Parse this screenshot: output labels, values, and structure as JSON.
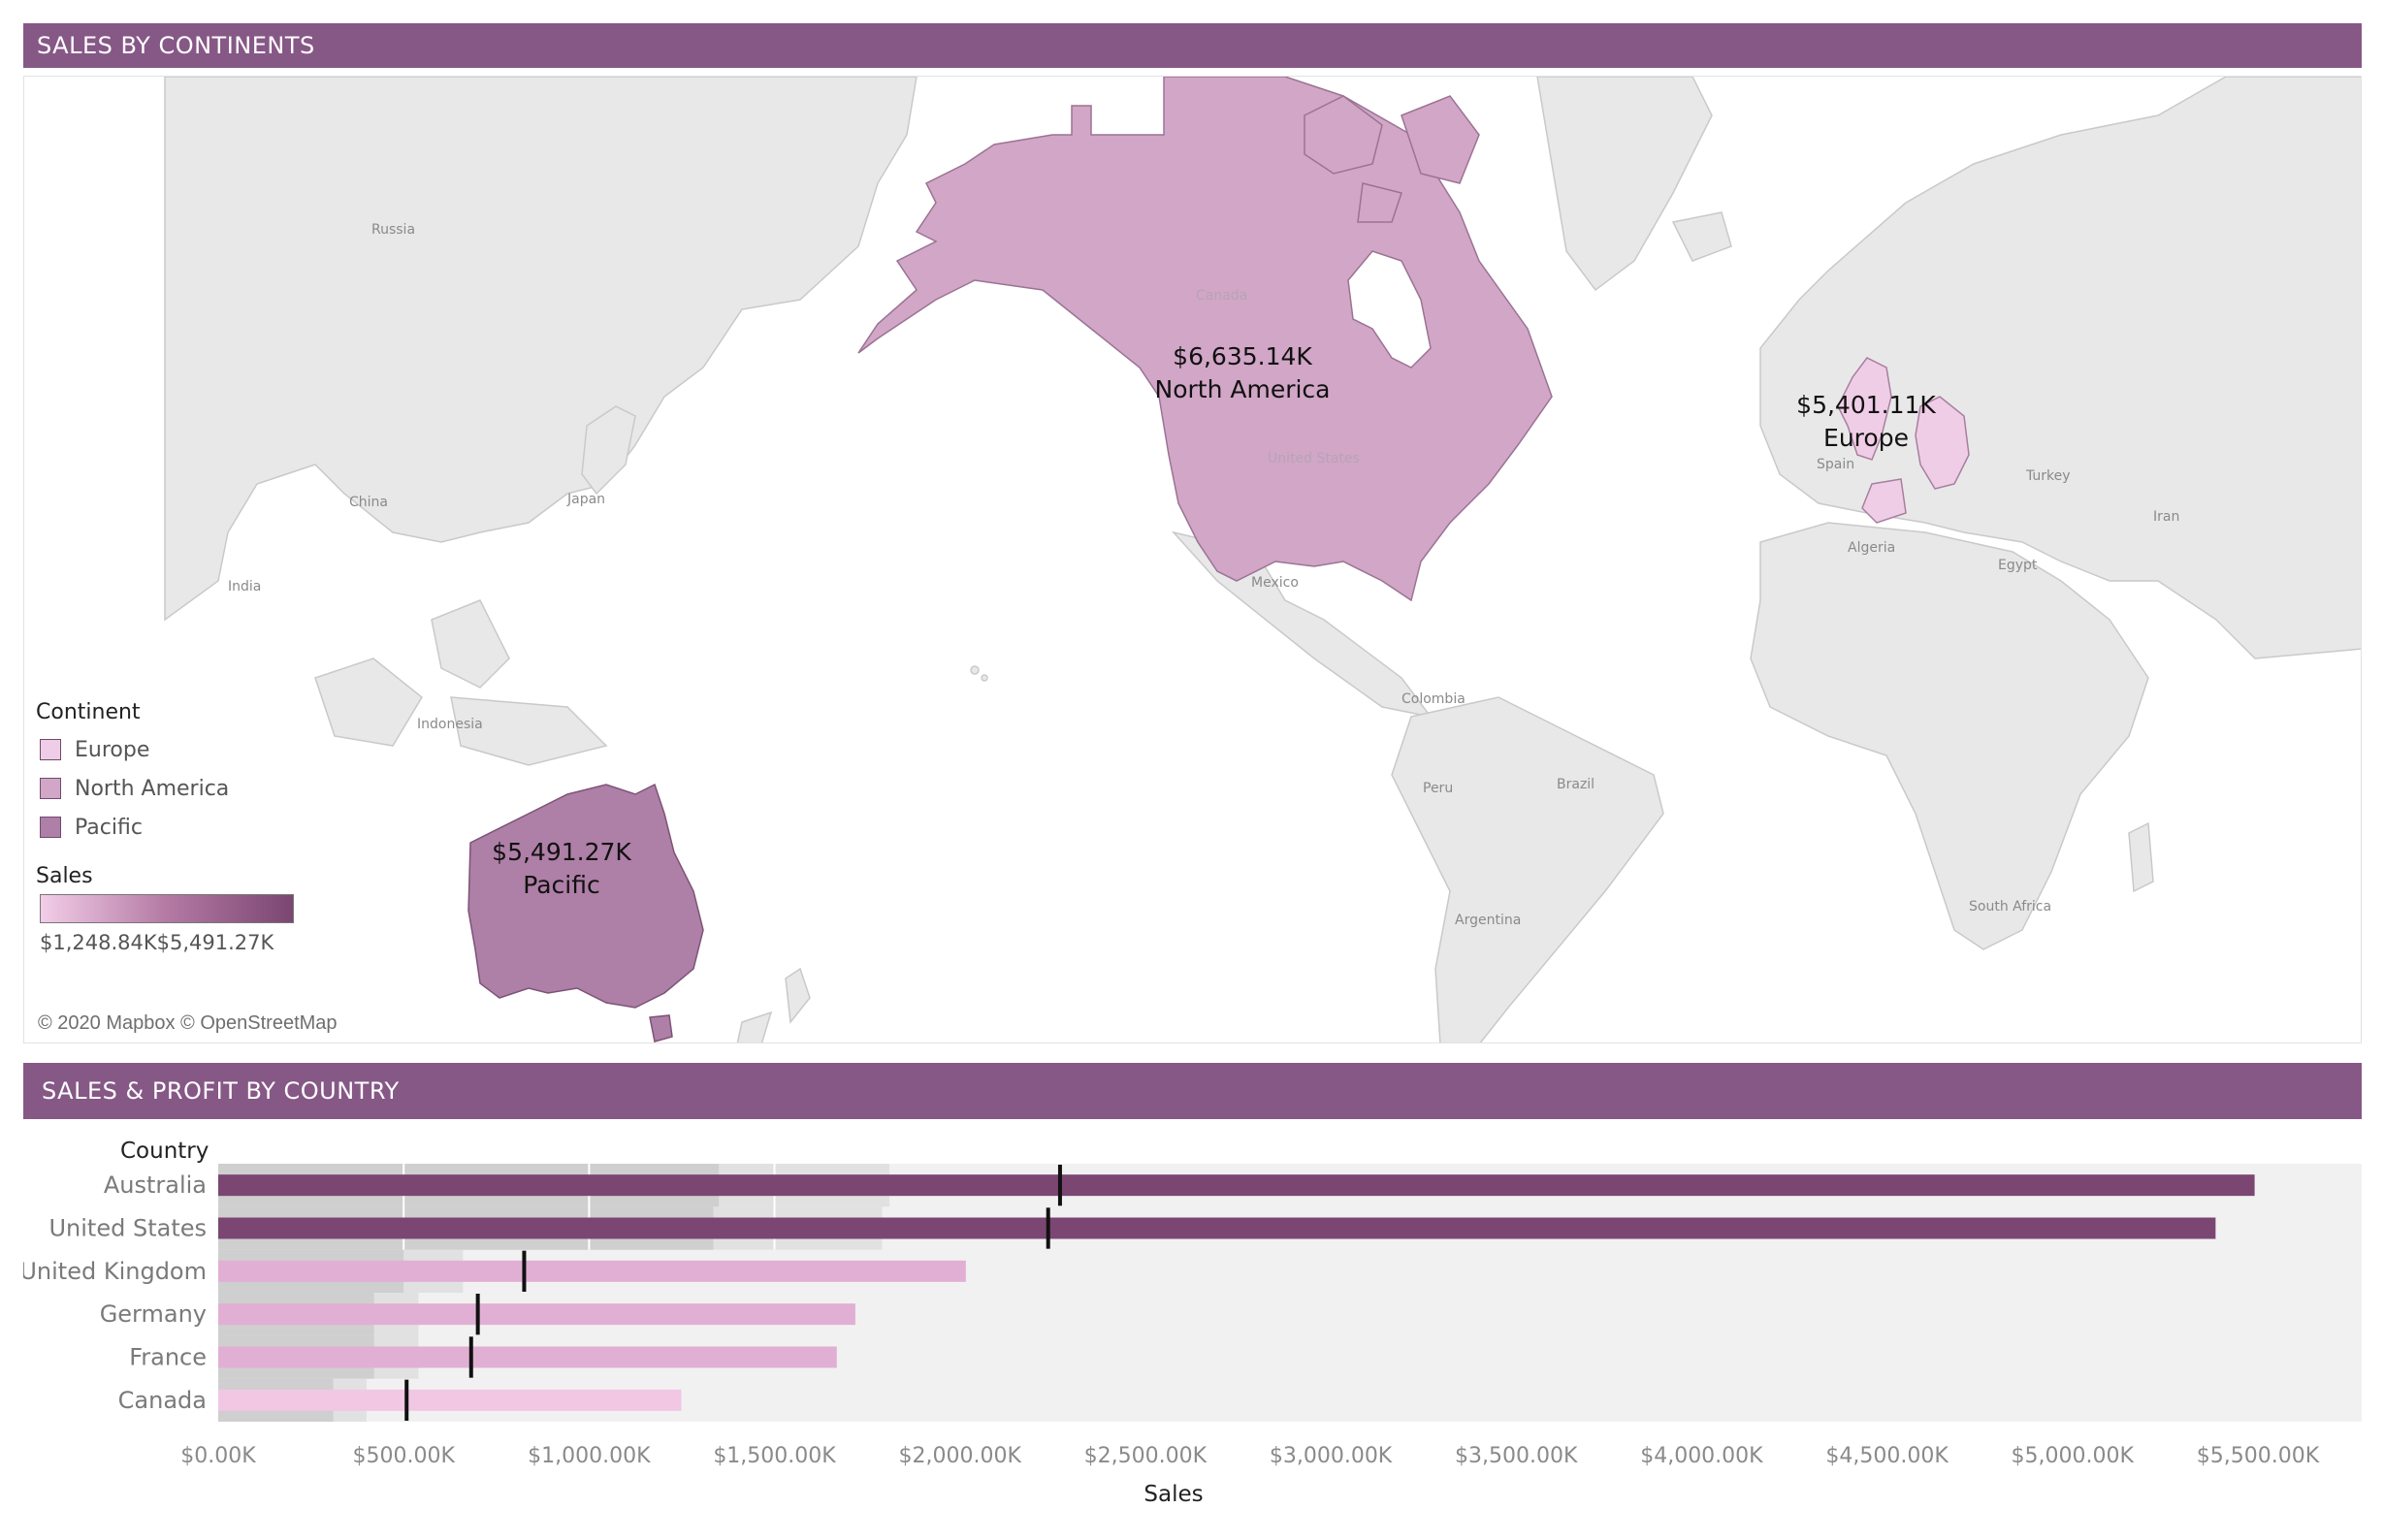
{
  "map_section": {
    "title": "SALES BY CONTINENTS",
    "places": [
      "Russia",
      "China",
      "Japan",
      "India",
      "Indonesia",
      "Canada",
      "United States",
      "Mexico",
      "Colombia",
      "Peru",
      "Brazil",
      "Argentina",
      "Spain",
      "Turkey",
      "Iran",
      "Algeria",
      "Egypt",
      "South Africa"
    ],
    "region_labels": [
      {
        "value": "$6,635.14K",
        "name": "North America"
      },
      {
        "value": "$5,401.11K",
        "name": "Europe"
      },
      {
        "value": "$5,491.27K",
        "name": "Pacific"
      }
    ],
    "legend": {
      "title": "Continent",
      "items": [
        {
          "label": "Europe",
          "color": "#f0cde6"
        },
        {
          "label": "North America",
          "color": "#d1a6c6"
        },
        {
          "label": "Pacific",
          "color": "#ae7fa7"
        }
      ]
    },
    "sales_legend": {
      "title": "Sales",
      "min_label": "$1,248.84K",
      "max_label": "$5,491.27K",
      "min_color": "#f2cde7",
      "max_color": "#7b4672"
    },
    "credit": "© 2020 Mapbox © OpenStreetMap"
  },
  "bar_section": {
    "title": "SALES & PROFIT BY COUNTRY",
    "column_header": "Country"
  },
  "chart_data": {
    "type": "bar",
    "orientation": "horizontal",
    "categories": [
      "Australia",
      "United States",
      "United Kingdom",
      "Germany",
      "France",
      "Canada"
    ],
    "series": [
      {
        "name": "Sales",
        "values": [
          5491.27,
          5386.0,
          2016.0,
          1718.0,
          1668.0,
          1248.84
        ]
      }
    ],
    "reference_marks": [
      2270,
      2238,
      825,
      700,
      682,
      508
    ],
    "background_bands": [
      {
        "band_1": 1350,
        "band_2": 1810
      },
      {
        "band_1": 1335,
        "band_2": 1790
      },
      {
        "band_1": 500,
        "band_2": 660
      },
      {
        "band_1": 420,
        "band_2": 540
      },
      {
        "band_1": 420,
        "band_2": 540
      },
      {
        "band_1": 310,
        "band_2": 400
      }
    ],
    "bar_colors": [
      "#7b4672",
      "#7b4672",
      "#e2afd4",
      "#e2afd4",
      "#e2afd4",
      "#f1c7e4"
    ],
    "x_ticks": [
      "$0.00K",
      "$500.00K",
      "$1,000.00K",
      "$1,500.00K",
      "$2,000.00K",
      "$2,500.00K",
      "$3,000.00K",
      "$3,500.00K",
      "$4,000.00K",
      "$4,500.00K",
      "$5,000.00K",
      "$5,500.00K"
    ],
    "xlim": [
      0,
      5780
    ],
    "xlabel": "Sales"
  }
}
